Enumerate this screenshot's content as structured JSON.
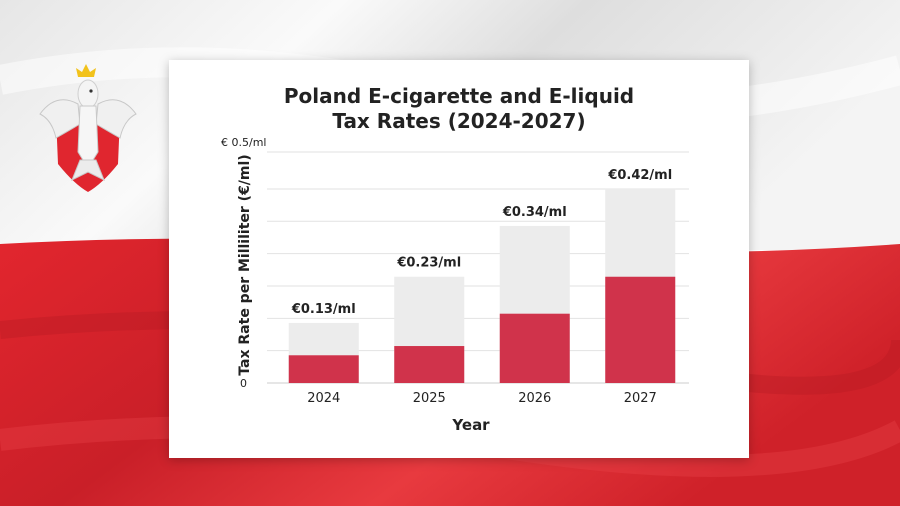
{
  "colors": {
    "bar_value": "#d0334b",
    "bar_background": "#ececec",
    "gridline": "#e2e2e2",
    "flag_white": "#f2f2f2",
    "flag_red": "#e0262f"
  },
  "background": {
    "flag_icon": "polish-flag-icon",
    "emblem_icon": "white-eagle-emblem-icon"
  },
  "chart_data": {
    "type": "bar",
    "title": "Poland E-cigarette and E-liquid\nTax Rates (2024-2027)",
    "xlabel": "Year",
    "ylabel": "Tax Rate per Milliliter (€/ml)",
    "ylim": [
      0,
      0.5
    ],
    "y_ticks": [
      {
        "value": 0,
        "label": "0"
      },
      {
        "value": 0.5,
        "label": "€ 0.5/ml"
      }
    ],
    "gridlines": [
      0.07,
      0.14,
      0.21,
      0.28,
      0.35,
      0.42,
      0.5
    ],
    "grid": true,
    "categories": [
      "2024",
      "2025",
      "2026",
      "2027"
    ],
    "values": [
      0.13,
      0.23,
      0.34,
      0.42
    ],
    "filled_values": [
      0.06,
      0.08,
      0.15,
      0.23
    ],
    "data_labels": [
      "€0.13/ml",
      "€0.23/ml",
      "€0.34/ml",
      "€0.42/ml"
    ]
  }
}
